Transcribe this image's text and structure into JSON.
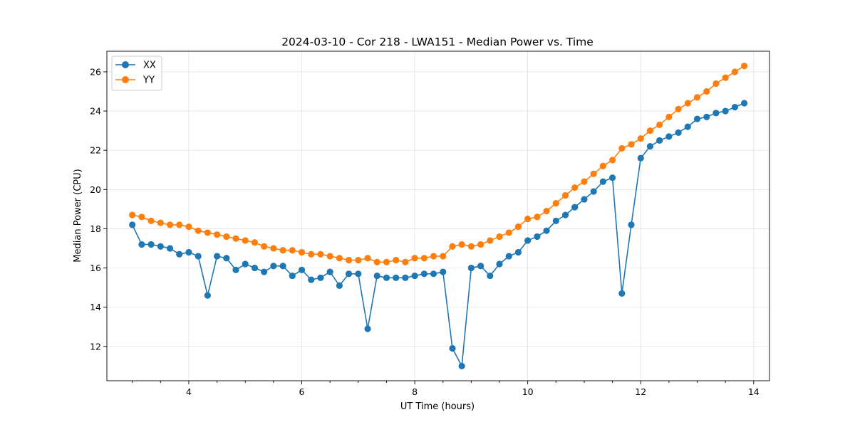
{
  "chart_data": {
    "type": "line",
    "title": "2024-03-10 - Cor 218 - LWA151 - Median Power vs. Time",
    "xlabel": "UT Time (hours)",
    "ylabel": "Median Power (CPU)",
    "xlim": [
      2.55,
      14.28
    ],
    "ylim": [
      10.25,
      27.05
    ],
    "x_major_ticks": [
      4,
      6,
      8,
      10,
      12,
      14
    ],
    "x_minor_step": 0.5,
    "y_major_ticks": [
      12,
      14,
      16,
      18,
      20,
      22,
      24,
      26
    ],
    "grid": true,
    "legend": "top-left",
    "series": [
      {
        "name": "XX",
        "color": "#1f77b4",
        "x": [
          3.0,
          3.167,
          3.333,
          3.5,
          3.667,
          3.833,
          4.0,
          4.167,
          4.333,
          4.5,
          4.667,
          4.833,
          5.0,
          5.167,
          5.333,
          5.5,
          5.667,
          5.833,
          6.0,
          6.167,
          6.333,
          6.5,
          6.667,
          6.833,
          7.0,
          7.167,
          7.333,
          7.5,
          7.667,
          7.833,
          8.0,
          8.167,
          8.333,
          8.5,
          8.667,
          8.833,
          9.0,
          9.167,
          9.333,
          9.5,
          9.667,
          9.833,
          10.0,
          10.167,
          10.333,
          10.5,
          10.667,
          10.833,
          11.0,
          11.167,
          11.333,
          11.5,
          11.667,
          11.833,
          12.0,
          12.167,
          12.333,
          12.5,
          12.667,
          12.833,
          13.0,
          13.167,
          13.333,
          13.5,
          13.667,
          13.833
        ],
        "values": [
          18.2,
          17.2,
          17.2,
          17.1,
          17.0,
          16.7,
          16.8,
          16.6,
          14.6,
          16.6,
          16.5,
          15.9,
          16.2,
          16.0,
          15.8,
          16.1,
          16.1,
          15.6,
          15.9,
          15.4,
          15.5,
          15.8,
          15.1,
          15.7,
          15.7,
          12.9,
          15.6,
          15.5,
          15.5,
          15.5,
          15.6,
          15.7,
          15.7,
          15.8,
          11.9,
          11.0,
          16.0,
          16.1,
          15.6,
          16.2,
          16.6,
          16.8,
          17.4,
          17.6,
          17.9,
          18.4,
          18.7,
          19.1,
          19.5,
          19.9,
          20.4,
          20.6,
          14.7,
          18.2,
          21.6,
          22.2,
          22.5,
          22.7,
          22.9,
          23.2,
          23.6,
          23.7,
          23.9,
          24.0,
          24.2,
          24.4
        ]
      },
      {
        "name": "YY",
        "color": "#ff7f0e",
        "x": [
          3.0,
          3.167,
          3.333,
          3.5,
          3.667,
          3.833,
          4.0,
          4.167,
          4.333,
          4.5,
          4.667,
          4.833,
          5.0,
          5.167,
          5.333,
          5.5,
          5.667,
          5.833,
          6.0,
          6.167,
          6.333,
          6.5,
          6.667,
          6.833,
          7.0,
          7.167,
          7.333,
          7.5,
          7.667,
          7.833,
          8.0,
          8.167,
          8.333,
          8.5,
          8.667,
          8.833,
          9.0,
          9.167,
          9.333,
          9.5,
          9.667,
          9.833,
          10.0,
          10.167,
          10.333,
          10.5,
          10.667,
          10.833,
          11.0,
          11.167,
          11.333,
          11.5,
          11.667,
          11.833,
          12.0,
          12.167,
          12.333,
          12.5,
          12.667,
          12.833,
          13.0,
          13.167,
          13.333,
          13.5,
          13.667,
          13.833
        ],
        "values": [
          18.7,
          18.6,
          18.4,
          18.3,
          18.2,
          18.2,
          18.1,
          17.9,
          17.8,
          17.7,
          17.6,
          17.5,
          17.4,
          17.3,
          17.1,
          17.0,
          16.9,
          16.9,
          16.8,
          16.7,
          16.7,
          16.6,
          16.5,
          16.4,
          16.4,
          16.5,
          16.3,
          16.3,
          16.4,
          16.3,
          16.5,
          16.5,
          16.6,
          16.6,
          17.1,
          17.2,
          17.1,
          17.2,
          17.4,
          17.6,
          17.8,
          18.1,
          18.5,
          18.6,
          18.9,
          19.3,
          19.7,
          20.1,
          20.4,
          20.8,
          21.2,
          21.5,
          22.1,
          22.3,
          22.6,
          23.0,
          23.3,
          23.7,
          24.1,
          24.4,
          24.7,
          25.0,
          25.4,
          25.7,
          26.0,
          26.3
        ]
      }
    ]
  }
}
